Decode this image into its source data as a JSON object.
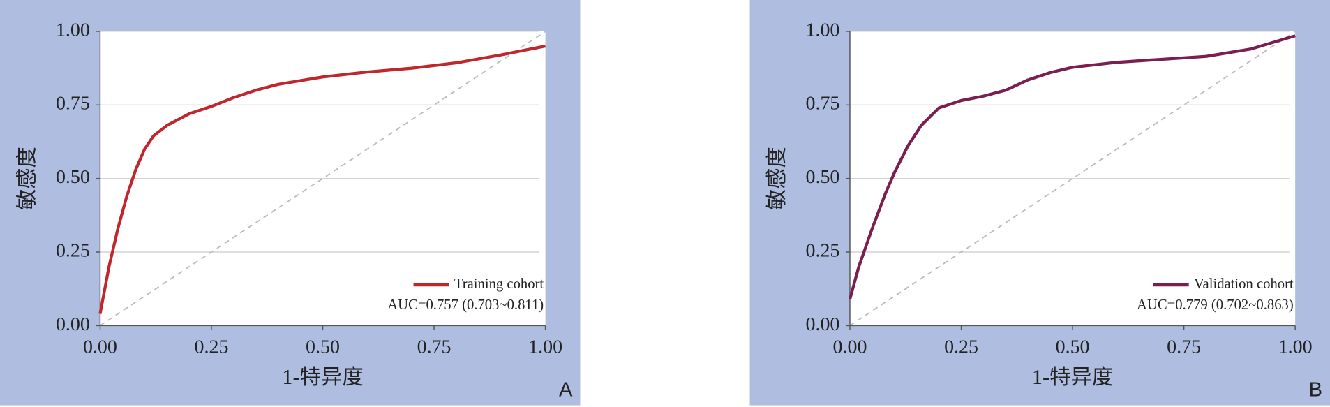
{
  "chart_data": [
    {
      "type": "line",
      "panel_label": "A",
      "xlabel": "1-特异度",
      "ylabel": "敏感度",
      "annotation": "AUC=0.757 (0.703~0.811)",
      "x": [
        0,
        0.02,
        0.04,
        0.06,
        0.08,
        0.1,
        0.12,
        0.15,
        0.2,
        0.25,
        0.3,
        0.35,
        0.4,
        0.5,
        0.6,
        0.7,
        0.8,
        0.9,
        1
      ],
      "series": [
        {
          "name": "Training cohort",
          "color": "#c0272d",
          "values": [
            0.04,
            0.2,
            0.33,
            0.44,
            0.53,
            0.6,
            0.645,
            0.68,
            0.72,
            0.745,
            0.775,
            0.8,
            0.82,
            0.845,
            0.862,
            0.875,
            0.893,
            0.92,
            0.95
          ]
        }
      ],
      "xlim": [
        0,
        1
      ],
      "ylim": [
        0,
        1
      ],
      "xticks": [
        {
          "value": 0,
          "label": "0.00"
        },
        {
          "value": 0.25,
          "label": "0.25"
        },
        {
          "value": 0.5,
          "label": "0.50"
        },
        {
          "value": 0.75,
          "label": "0.75"
        },
        {
          "value": 1,
          "label": "1.00"
        }
      ],
      "yticks": [
        {
          "value": 0,
          "label": "0.00"
        },
        {
          "value": 0.25,
          "label": "0.25"
        },
        {
          "value": 0.5,
          "label": "0.50"
        },
        {
          "value": 0.75,
          "label": "0.75"
        },
        {
          "value": 1,
          "label": "1.00"
        }
      ],
      "grid": true,
      "legend": "lower right"
    },
    {
      "type": "line",
      "panel_label": "B",
      "xlabel": "1-特异度",
      "ylabel": "敏感度",
      "annotation": "AUC=0.779 (0.702~0.863)",
      "x": [
        0,
        0.02,
        0.05,
        0.08,
        0.1,
        0.13,
        0.16,
        0.2,
        0.25,
        0.3,
        0.35,
        0.4,
        0.45,
        0.5,
        0.6,
        0.7,
        0.8,
        0.9,
        1
      ],
      "series": [
        {
          "name": "Validation cohort",
          "color": "#7a1f4f",
          "values": [
            0.09,
            0.2,
            0.33,
            0.45,
            0.52,
            0.61,
            0.68,
            0.74,
            0.765,
            0.78,
            0.8,
            0.835,
            0.86,
            0.878,
            0.895,
            0.905,
            0.915,
            0.94,
            0.985
          ]
        }
      ],
      "xlim": [
        0,
        1
      ],
      "ylim": [
        0,
        1
      ],
      "xticks": [
        {
          "value": 0,
          "label": "0.00"
        },
        {
          "value": 0.25,
          "label": "0.25"
        },
        {
          "value": 0.5,
          "label": "0.50"
        },
        {
          "value": 0.75,
          "label": "0.75"
        },
        {
          "value": 1,
          "label": "1.00"
        }
      ],
      "yticks": [
        {
          "value": 0,
          "label": "0.00"
        },
        {
          "value": 0.25,
          "label": "0.25"
        },
        {
          "value": 0.5,
          "label": "0.50"
        },
        {
          "value": 0.75,
          "label": "0.75"
        },
        {
          "value": 1,
          "label": "1.00"
        }
      ],
      "grid": true,
      "legend": "lower right"
    }
  ]
}
